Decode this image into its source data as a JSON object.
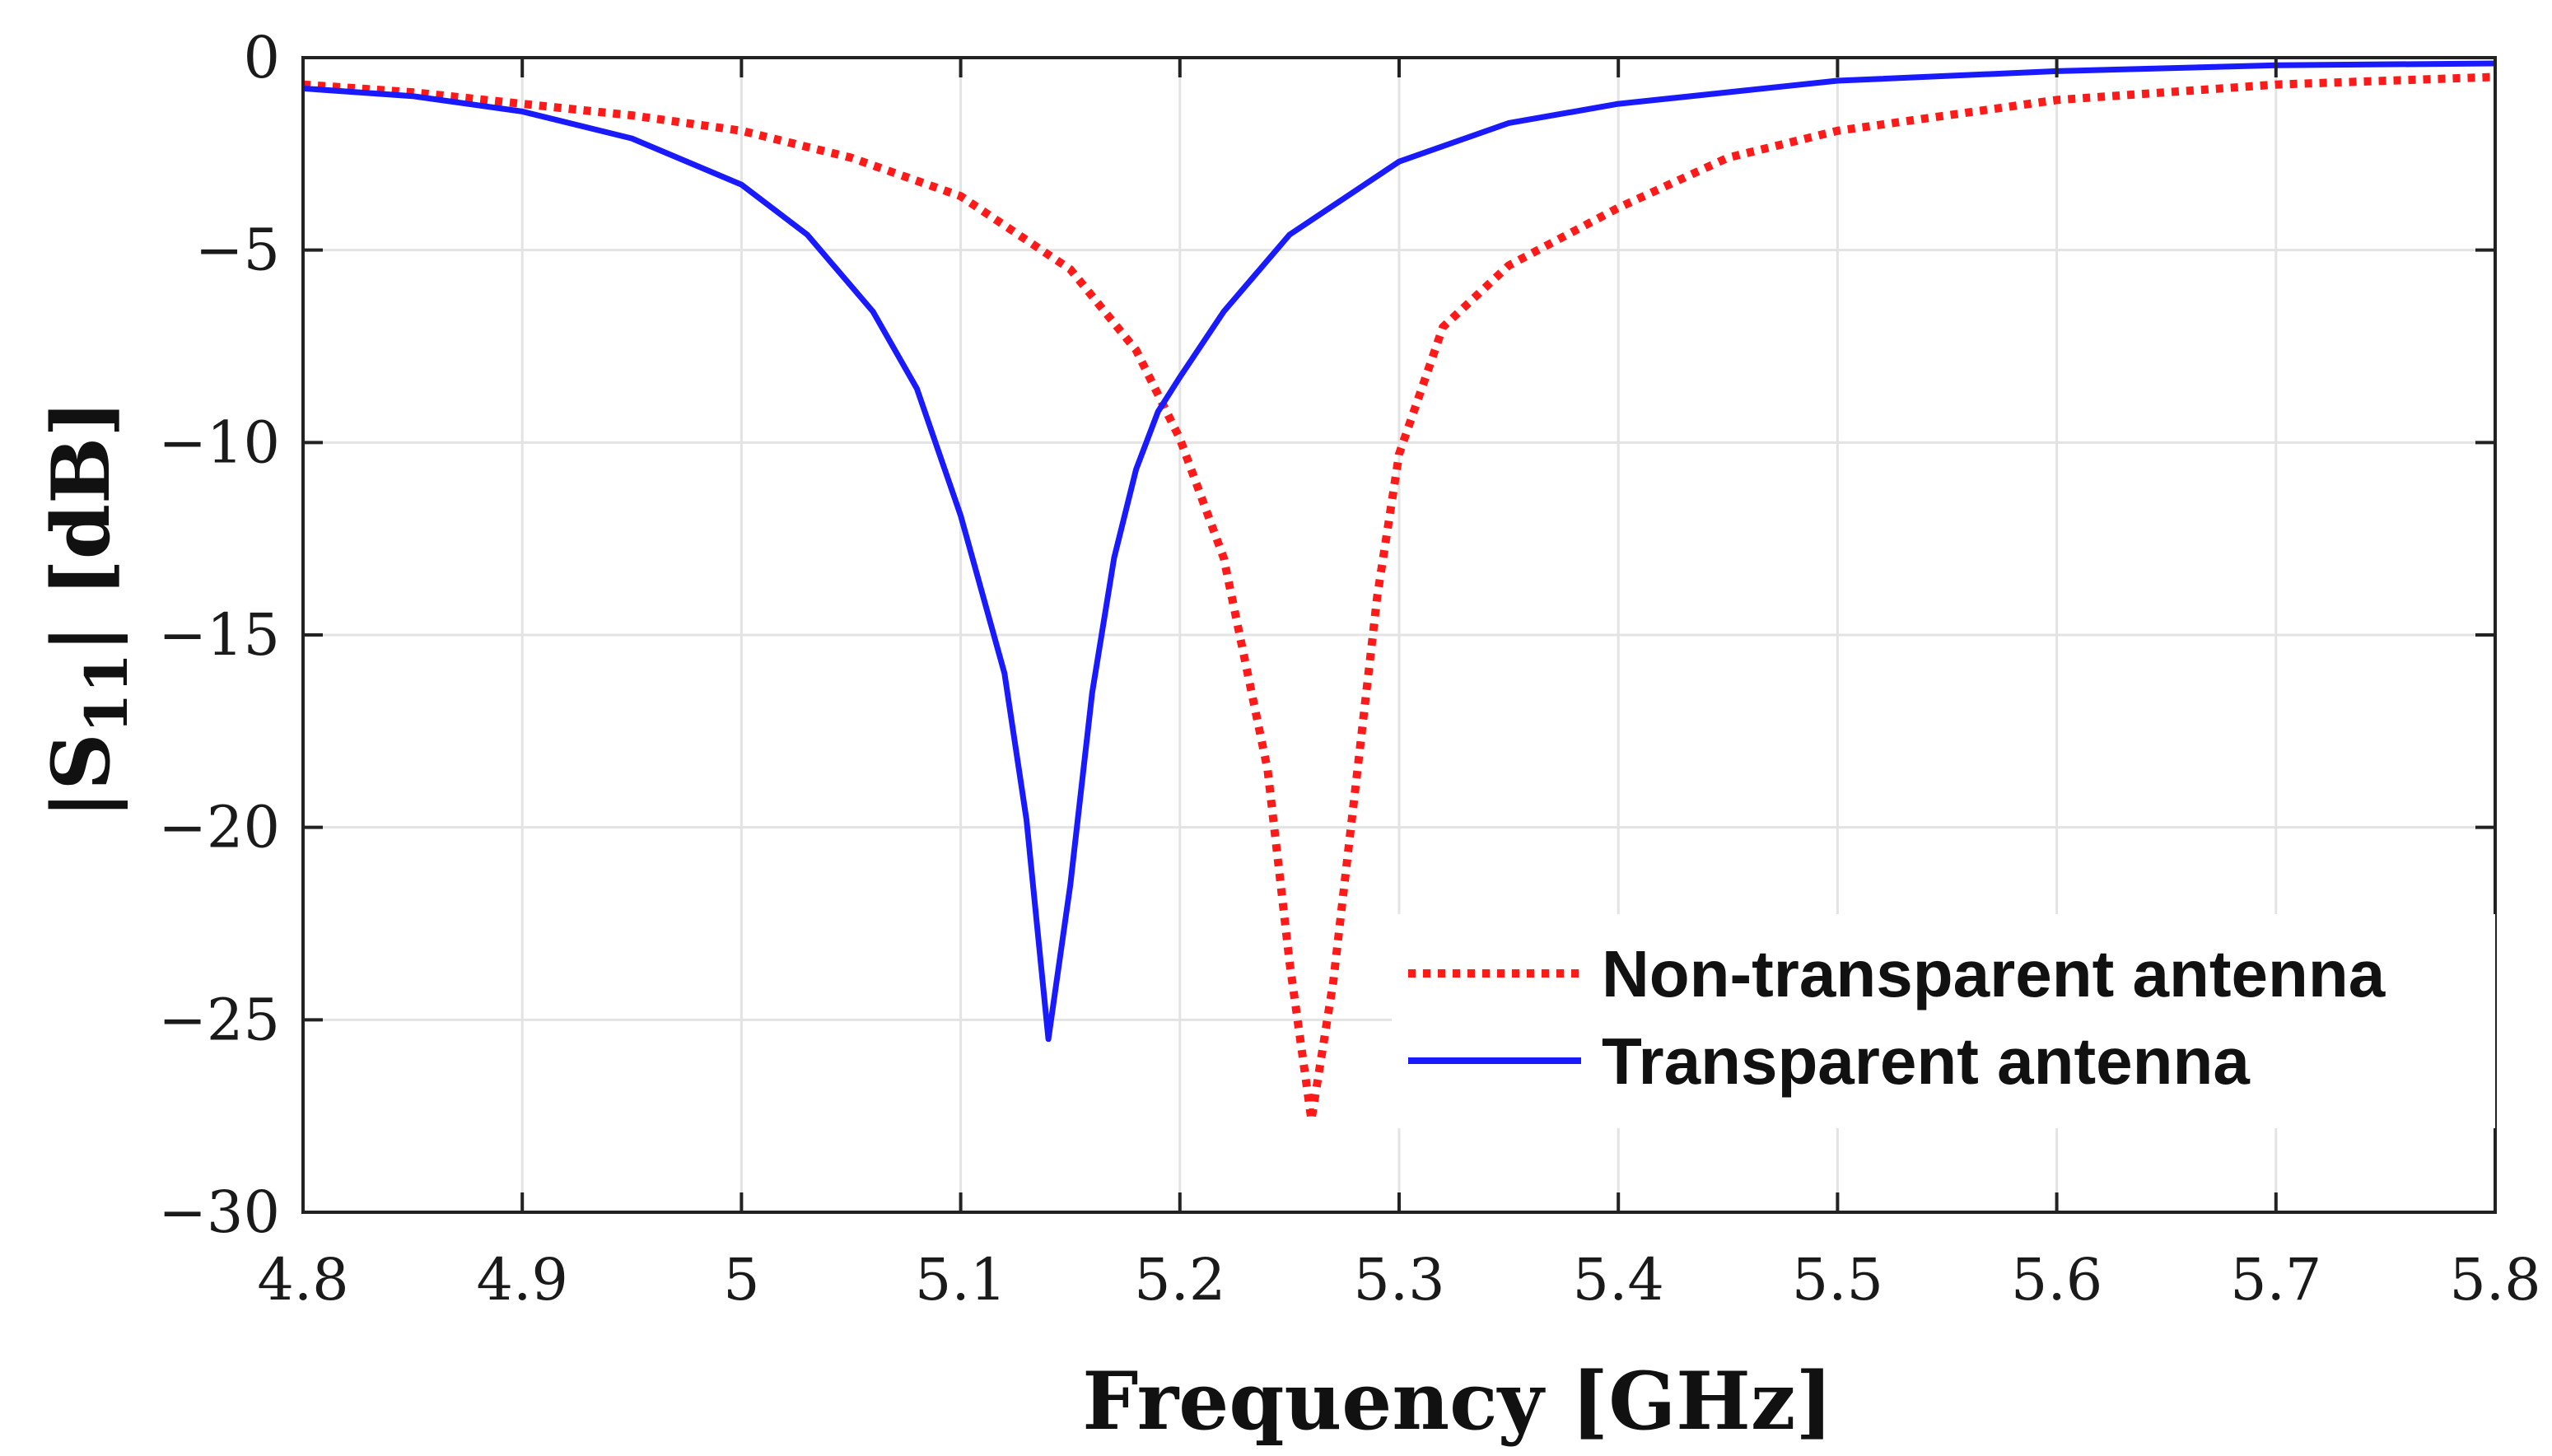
{
  "chart_data": {
    "type": "line",
    "title": "",
    "xlabel": "Frequency [GHz]",
    "ylabel_main": "|S",
    "ylabel_sub": "11",
    "ylabel_tail": "| [dB]",
    "xlim": [
      4.8,
      5.8
    ],
    "ylim": [
      -30,
      0
    ],
    "x_ticks": [
      4.8,
      4.9,
      5.0,
      5.1,
      5.2,
      5.3,
      5.4,
      5.5,
      5.6,
      5.7,
      5.8
    ],
    "x_tick_labels": [
      "4.8",
      "4.9",
      "5",
      "5.1",
      "5.2",
      "5.3",
      "5.4",
      "5.5",
      "5.6",
      "5.7",
      "5.8"
    ],
    "y_ticks": [
      0,
      -5,
      -10,
      -15,
      -20,
      -25,
      -30
    ],
    "y_tick_labels": [
      "0",
      "−5",
      "−10",
      "−15",
      "−20",
      "−25",
      "−30"
    ],
    "grid": true,
    "legend_position": "bottom-right",
    "series": [
      {
        "name": "Non-transparent antenna",
        "color": "#ff1a1a",
        "style": "dotted",
        "x": [
          4.8,
          4.85,
          4.9,
          4.95,
          5.0,
          5.05,
          5.1,
          5.15,
          5.18,
          5.2,
          5.22,
          5.24,
          5.25,
          5.26,
          5.27,
          5.28,
          5.29,
          5.3,
          5.32,
          5.35,
          5.4,
          5.45,
          5.5,
          5.55,
          5.6,
          5.7,
          5.8
        ],
        "y": [
          -0.7,
          -0.9,
          -1.2,
          -1.5,
          -1.9,
          -2.6,
          -3.6,
          -5.5,
          -7.6,
          -9.9,
          -13.0,
          -18.5,
          -23.5,
          -27.6,
          -24.0,
          -19.0,
          -14.0,
          -10.3,
          -7.0,
          -5.4,
          -3.9,
          -2.6,
          -1.9,
          -1.5,
          -1.1,
          -0.7,
          -0.5
        ]
      },
      {
        "name": "Transparent antenna",
        "color": "#1a1aff",
        "style": "solid",
        "x": [
          4.8,
          4.85,
          4.9,
          4.95,
          5.0,
          5.03,
          5.06,
          5.08,
          5.1,
          5.12,
          5.13,
          5.14,
          5.15,
          5.16,
          5.17,
          5.18,
          5.19,
          5.2,
          5.22,
          5.25,
          5.3,
          5.35,
          5.4,
          5.5,
          5.6,
          5.7,
          5.8
        ],
        "y": [
          -0.8,
          -1.0,
          -1.4,
          -2.1,
          -3.3,
          -4.6,
          -6.6,
          -8.6,
          -11.9,
          -16.0,
          -19.8,
          -25.5,
          -21.5,
          -16.5,
          -13.0,
          -10.7,
          -9.2,
          -8.3,
          -6.6,
          -4.6,
          -2.7,
          -1.7,
          -1.2,
          -0.6,
          -0.35,
          -0.2,
          -0.15
        ]
      }
    ]
  }
}
